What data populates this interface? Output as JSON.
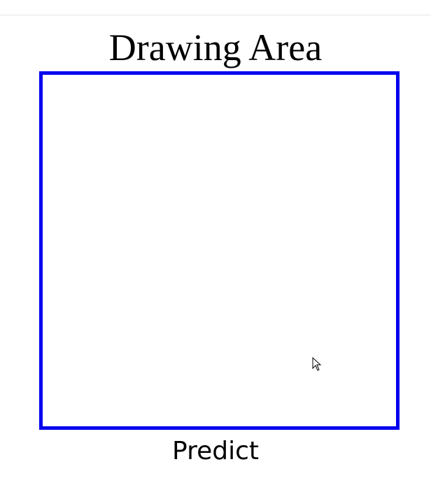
{
  "header": {
    "title": "Drawing Area"
  },
  "canvas": {
    "border_color": "#0000ee"
  },
  "actions": {
    "predict_label": "Predict"
  },
  "icons": {
    "cursor": "mouse-pointer-icon"
  }
}
